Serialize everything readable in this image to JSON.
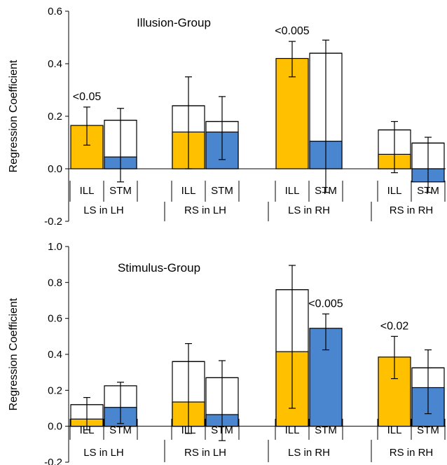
{
  "chart_data": [
    {
      "type": "bar",
      "title": "Illusion-Group",
      "ylabel": "Regression Coefficient",
      "ylim": [
        -0.2,
        0.6
      ],
      "yticks": [
        "-0.2",
        "0.0",
        "0.2",
        "0.4",
        "0.6"
      ],
      "groups": [
        "LS in LH",
        "RS in LH",
        "LS in RH",
        "RS in RH"
      ],
      "conditions": [
        "ILL",
        "STM"
      ],
      "colors": {
        "ILL": "#FFC000",
        "STM": "#4A86CF"
      },
      "grid": false,
      "bars": [
        {
          "group": "LS in LH",
          "condition": "ILL",
          "filled": 0.165,
          "total": 0.165,
          "err_low": 0.09,
          "err_high": 0.235
        },
        {
          "group": "LS in LH",
          "condition": "STM",
          "filled": 0.045,
          "total": 0.185,
          "err_low": -0.05,
          "err_high": 0.23
        },
        {
          "group": "RS in LH",
          "condition": "ILL",
          "filled": 0.14,
          "total": 0.24,
          "err_low": 0.0,
          "err_high": 0.35
        },
        {
          "group": "RS in LH",
          "condition": "STM",
          "filled": 0.14,
          "total": 0.18,
          "err_low": 0.035,
          "err_high": 0.275
        },
        {
          "group": "LS in RH",
          "condition": "ILL",
          "filled": 0.42,
          "total": 0.42,
          "err_low": 0.35,
          "err_high": 0.485
        },
        {
          "group": "LS in RH",
          "condition": "STM",
          "filled": 0.105,
          "total": 0.44,
          "err_low": -0.09,
          "err_high": 0.49
        },
        {
          "group": "RS in RH",
          "condition": "ILL",
          "filled": 0.055,
          "total": 0.148,
          "err_low": -0.015,
          "err_high": 0.18
        },
        {
          "group": "RS in RH",
          "condition": "STM",
          "filled": -0.05,
          "total": 0.098,
          "err_low": -0.09,
          "err_high": 0.12
        }
      ],
      "annotations": [
        {
          "text": "<0.05",
          "group": "LS in LH",
          "condition": "ILL"
        },
        {
          "text": "<0.005",
          "group": "LS in RH",
          "condition": "ILL"
        }
      ]
    },
    {
      "type": "bar",
      "title": "Stimulus-Group",
      "ylabel": "Regression Coefficient",
      "ylim": [
        -0.2,
        1.0
      ],
      "yticks": [
        "-0.2",
        "0.0",
        "0.2",
        "0.4",
        "0.6",
        "0.8",
        "1.0"
      ],
      "groups": [
        "LS in LH",
        "RS in LH",
        "LS in RH",
        "RS in RH"
      ],
      "conditions": [
        "ILL",
        "STM"
      ],
      "colors": {
        "ILL": "#FFC000",
        "STM": "#4A86CF"
      },
      "grid": false,
      "bars": [
        {
          "group": "LS in LH",
          "condition": "ILL",
          "filled": 0.04,
          "total": 0.12,
          "err_low": -0.02,
          "err_high": 0.16
        },
        {
          "group": "LS in LH",
          "condition": "STM",
          "filled": 0.105,
          "total": 0.225,
          "err_low": 0.015,
          "err_high": 0.245
        },
        {
          "group": "RS in LH",
          "condition": "ILL",
          "filled": 0.135,
          "total": 0.36,
          "err_low": -0.04,
          "err_high": 0.46
        },
        {
          "group": "RS in LH",
          "condition": "STM",
          "filled": 0.065,
          "total": 0.27,
          "err_low": -0.08,
          "err_high": 0.365
        },
        {
          "group": "LS in RH",
          "condition": "ILL",
          "filled": 0.415,
          "total": 0.76,
          "err_low": 0.1,
          "err_high": 0.895
        },
        {
          "group": "LS in RH",
          "condition": "STM",
          "filled": 0.545,
          "total": 0.545,
          "err_low": 0.425,
          "err_high": 0.625
        },
        {
          "group": "RS in RH",
          "condition": "ILL",
          "filled": 0.385,
          "total": 0.385,
          "err_low": 0.265,
          "err_high": 0.5
        },
        {
          "group": "RS in RH",
          "condition": "STM",
          "filled": 0.215,
          "total": 0.325,
          "err_low": 0.07,
          "err_high": 0.425
        }
      ],
      "annotations": [
        {
          "text": "<0.005",
          "group": "LS in RH",
          "condition": "STM"
        },
        {
          "text": "<0.02",
          "group": "RS in RH",
          "condition": "ILL"
        }
      ]
    }
  ]
}
